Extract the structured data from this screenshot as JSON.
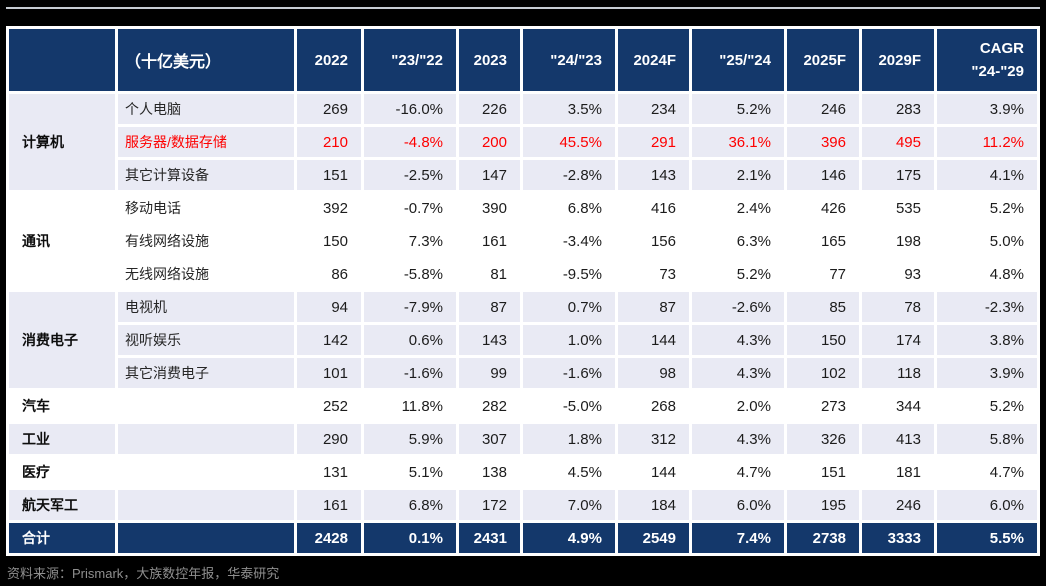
{
  "colors": {
    "header_navy": "#14386b",
    "row_shade_lavender": "#e9eaf4",
    "highlight_red": "#fe0000",
    "page_background": "#000000",
    "top_rule_gray": "#c6cbd2",
    "source_text_gray": "#8f8f8f"
  },
  "header": {
    "cagr_line1": "CAGR",
    "cagr_line2": "\"24-\"29"
  },
  "footer": {
    "source": "资料来源：Prismark，大族数控年报，华泰研究"
  },
  "chart_data": {
    "type": "table",
    "unit_label": "（十亿美元）",
    "columns": [
      "2022",
      "\"23/\"22",
      "2023",
      "\"24/\"23",
      "2024F",
      "\"25/\"24",
      "2025F",
      "2029F",
      "CAGR \"24-\"29"
    ],
    "groups": [
      {
        "category": "计算机",
        "rows": [
          {
            "label": "个人电脑",
            "highlight": false,
            "values": [
              "269",
              "-16.0%",
              "226",
              "3.5%",
              "234",
              "5.2%",
              "246",
              "283",
              "3.9%"
            ]
          },
          {
            "label": "服务器/数据存储",
            "highlight": true,
            "values": [
              "210",
              "-4.8%",
              "200",
              "45.5%",
              "291",
              "36.1%",
              "396",
              "495",
              "11.2%"
            ]
          },
          {
            "label": "其它计算设备",
            "highlight": false,
            "values": [
              "151",
              "-2.5%",
              "147",
              "-2.8%",
              "143",
              "2.1%",
              "146",
              "175",
              "4.1%"
            ]
          }
        ]
      },
      {
        "category": "通讯",
        "rows": [
          {
            "label": "移动电话",
            "highlight": false,
            "values": [
              "392",
              "-0.7%",
              "390",
              "6.8%",
              "416",
              "2.4%",
              "426",
              "535",
              "5.2%"
            ]
          },
          {
            "label": "有线网络设施",
            "highlight": false,
            "values": [
              "150",
              "7.3%",
              "161",
              "-3.4%",
              "156",
              "6.3%",
              "165",
              "198",
              "5.0%"
            ]
          },
          {
            "label": "无线网络设施",
            "highlight": false,
            "values": [
              "86",
              "-5.8%",
              "81",
              "-9.5%",
              "73",
              "5.2%",
              "77",
              "93",
              "4.8%"
            ]
          }
        ]
      },
      {
        "category": "消费电子",
        "rows": [
          {
            "label": "电视机",
            "highlight": false,
            "values": [
              "94",
              "-7.9%",
              "87",
              "0.7%",
              "87",
              "-2.6%",
              "85",
              "78",
              "-2.3%"
            ]
          },
          {
            "label": "视听娱乐",
            "highlight": false,
            "values": [
              "142",
              "0.6%",
              "143",
              "1.0%",
              "144",
              "4.3%",
              "150",
              "174",
              "3.8%"
            ]
          },
          {
            "label": "其它消费电子",
            "highlight": false,
            "values": [
              "101",
              "-1.6%",
              "99",
              "-1.6%",
              "98",
              "4.3%",
              "102",
              "118",
              "3.9%"
            ]
          }
        ]
      },
      {
        "category": "汽车",
        "rows": [
          {
            "label": "",
            "highlight": false,
            "values": [
              "252",
              "11.8%",
              "282",
              "-5.0%",
              "268",
              "2.0%",
              "273",
              "344",
              "5.2%"
            ]
          }
        ]
      },
      {
        "category": "工业",
        "rows": [
          {
            "label": "",
            "highlight": false,
            "values": [
              "290",
              "5.9%",
              "307",
              "1.8%",
              "312",
              "4.3%",
              "326",
              "413",
              "5.8%"
            ]
          }
        ]
      },
      {
        "category": "医疗",
        "rows": [
          {
            "label": "",
            "highlight": false,
            "values": [
              "131",
              "5.1%",
              "138",
              "4.5%",
              "144",
              "4.7%",
              "151",
              "181",
              "4.7%"
            ]
          }
        ]
      },
      {
        "category": "航天军工",
        "rows": [
          {
            "label": "",
            "highlight": false,
            "values": [
              "161",
              "6.8%",
              "172",
              "7.0%",
              "184",
              "6.0%",
              "195",
              "246",
              "6.0%"
            ]
          }
        ]
      }
    ],
    "total": {
      "label": "合计",
      "values": [
        "2428",
        "0.1%",
        "2431",
        "4.9%",
        "2549",
        "7.4%",
        "2738",
        "3333",
        "5.5%"
      ]
    }
  }
}
